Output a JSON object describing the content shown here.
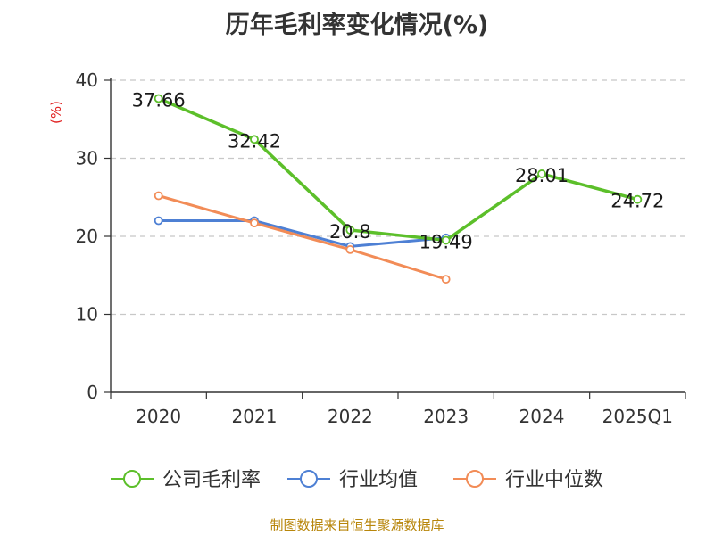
{
  "chart_data": {
    "type": "line",
    "title": "历年毛利率变化情况(%)",
    "ylabel": "(%)",
    "categories": [
      "2020",
      "2021",
      "2022",
      "2023",
      "2024",
      "2025Q1"
    ],
    "ylim": [
      0,
      40
    ],
    "yticks": [
      0,
      10,
      20,
      30,
      40
    ],
    "grid": true,
    "legend_position": "bottom",
    "series": [
      {
        "name": "公司毛利率",
        "color": "#5cbf2a",
        "values": [
          37.66,
          32.42,
          20.8,
          19.49,
          28.01,
          24.72
        ],
        "labels": [
          "37.66",
          "32.42",
          "20.8",
          "19.49",
          "28.01",
          "24.72"
        ]
      },
      {
        "name": "行业均值",
        "color": "#4e80d4",
        "values": [
          22.0,
          22.0,
          18.7,
          19.8,
          null,
          null
        ]
      },
      {
        "name": "行业中位数",
        "color": "#f28c57",
        "values": [
          25.2,
          21.7,
          18.3,
          14.5,
          null,
          null
        ]
      }
    ]
  },
  "source": "制图数据来自恒生聚源数据库"
}
